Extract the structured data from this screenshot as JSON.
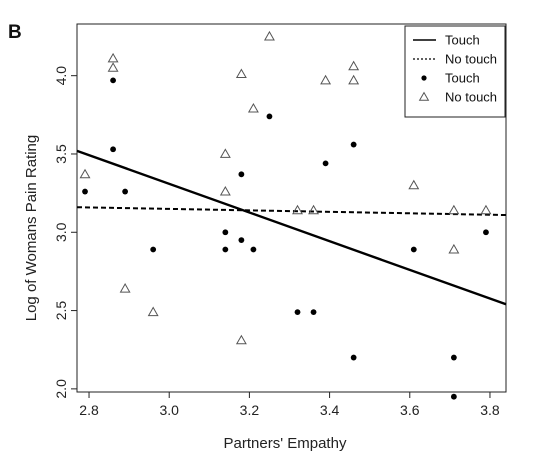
{
  "chart_data": {
    "type": "scatter",
    "panel_label": "B",
    "title": "",
    "xlabel": "Partners' Empathy",
    "ylabel": "Log of Womans Pain Rating",
    "xlim": [
      2.77,
      3.84
    ],
    "ylim": [
      1.98,
      4.33
    ],
    "x_ticks": [
      "2.8",
      "3.0",
      "3.2",
      "3.4",
      "3.6",
      "3.8"
    ],
    "y_ticks": [
      "2.0",
      "2.5",
      "3.0",
      "3.5",
      "4.0"
    ],
    "grid": false,
    "legend_position": "top-right",
    "legend": [
      {
        "label": "Touch",
        "marker": "solid-line"
      },
      {
        "label": "No touch",
        "marker": "dashed-line"
      },
      {
        "label": "Touch",
        "marker": "filled-circle"
      },
      {
        "label": "No touch",
        "marker": "open-triangle"
      }
    ],
    "series": [
      {
        "name": "Touch",
        "marker": "filled-circle",
        "points": [
          {
            "x": 2.79,
            "y": 3.26
          },
          {
            "x": 2.86,
            "y": 3.97
          },
          {
            "x": 2.86,
            "y": 3.53
          },
          {
            "x": 2.89,
            "y": 3.26
          },
          {
            "x": 2.96,
            "y": 2.89
          },
          {
            "x": 3.14,
            "y": 3.0
          },
          {
            "x": 3.14,
            "y": 2.89
          },
          {
            "x": 3.18,
            "y": 3.37
          },
          {
            "x": 3.18,
            "y": 2.95
          },
          {
            "x": 3.21,
            "y": 2.89
          },
          {
            "x": 3.25,
            "y": 3.74
          },
          {
            "x": 3.32,
            "y": 2.49
          },
          {
            "x": 3.36,
            "y": 2.49
          },
          {
            "x": 3.39,
            "y": 3.44
          },
          {
            "x": 3.46,
            "y": 3.56
          },
          {
            "x": 3.46,
            "y": 2.2
          },
          {
            "x": 3.61,
            "y": 2.89
          },
          {
            "x": 3.71,
            "y": 2.2
          },
          {
            "x": 3.71,
            "y": 1.95
          },
          {
            "x": 3.79,
            "y": 3.0
          }
        ]
      },
      {
        "name": "No touch",
        "marker": "open-triangle",
        "points": [
          {
            "x": 2.79,
            "y": 3.37
          },
          {
            "x": 2.86,
            "y": 4.11
          },
          {
            "x": 2.86,
            "y": 4.05
          },
          {
            "x": 2.89,
            "y": 2.64
          },
          {
            "x": 2.96,
            "y": 2.49
          },
          {
            "x": 3.14,
            "y": 3.5
          },
          {
            "x": 3.14,
            "y": 3.26
          },
          {
            "x": 3.18,
            "y": 4.01
          },
          {
            "x": 3.18,
            "y": 2.31
          },
          {
            "x": 3.21,
            "y": 3.79
          },
          {
            "x": 3.25,
            "y": 4.25
          },
          {
            "x": 3.32,
            "y": 3.14
          },
          {
            "x": 3.36,
            "y": 3.14
          },
          {
            "x": 3.39,
            "y": 3.97
          },
          {
            "x": 3.46,
            "y": 4.06
          },
          {
            "x": 3.46,
            "y": 3.97
          },
          {
            "x": 3.61,
            "y": 3.3
          },
          {
            "x": 3.71,
            "y": 3.14
          },
          {
            "x": 3.71,
            "y": 2.89
          },
          {
            "x": 3.79,
            "y": 3.14
          }
        ]
      }
    ],
    "fit_lines": [
      {
        "name": "Touch",
        "style": "solid",
        "x": [
          2.77,
          3.84
        ],
        "y": [
          3.52,
          2.54
        ]
      },
      {
        "name": "No touch",
        "style": "dashed",
        "x": [
          2.77,
          3.84
        ],
        "y": [
          3.16,
          3.11
        ]
      }
    ]
  }
}
